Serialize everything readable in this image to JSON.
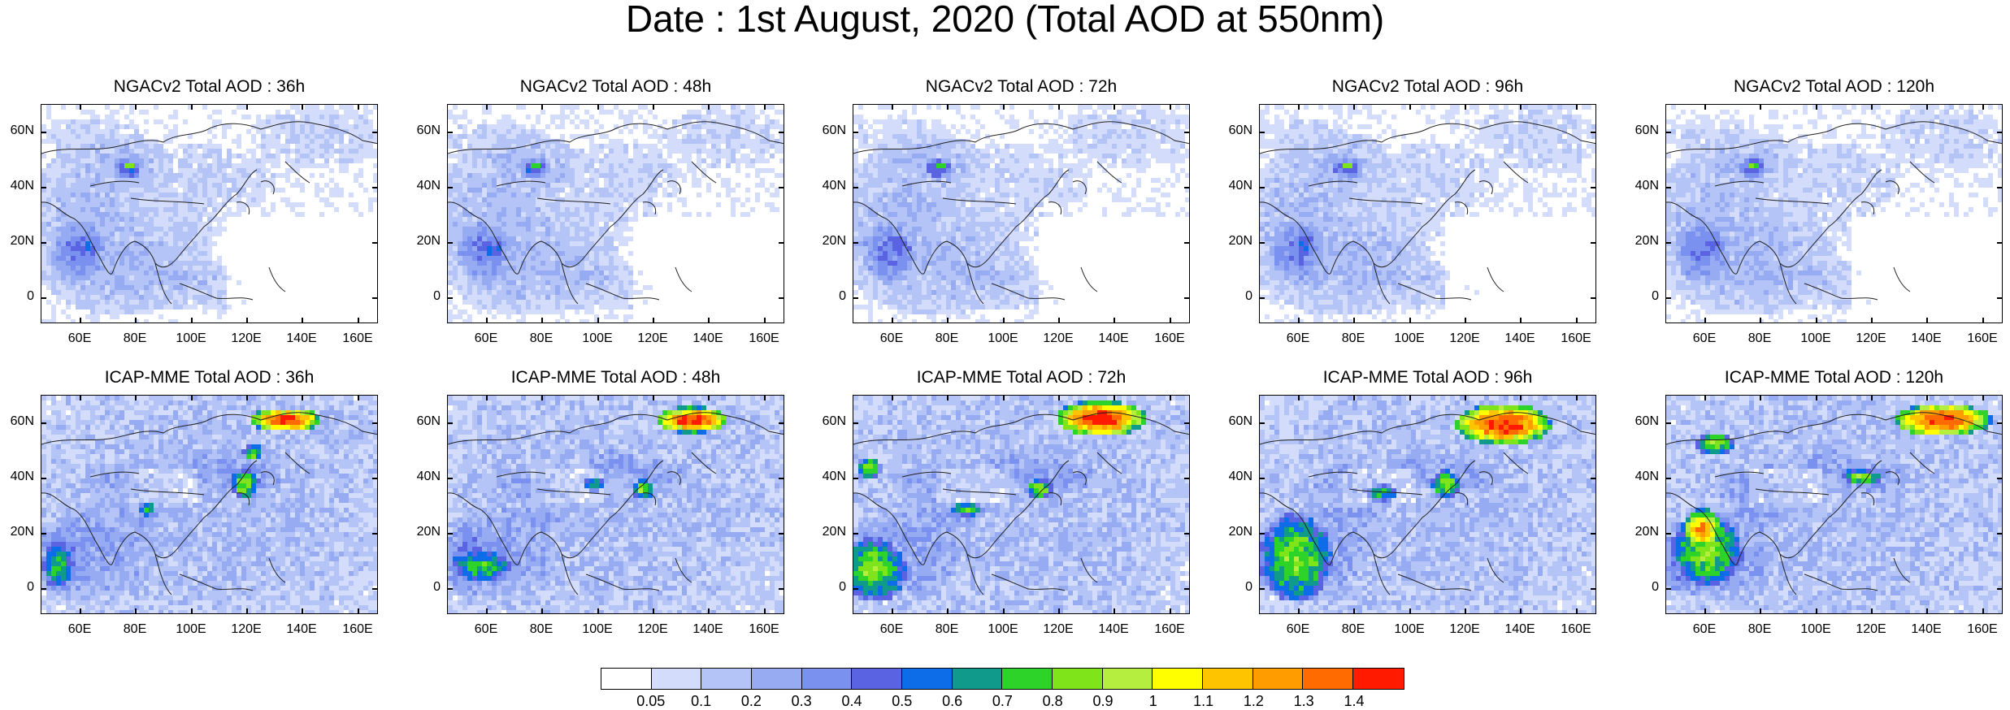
{
  "title": "Date : 1st August, 2020 (Total AOD at 550nm)",
  "lat_ticks": [
    "60N",
    "40N",
    "20N",
    "0"
  ],
  "lon_ticks": [
    "60E",
    "80E",
    "100E",
    "120E",
    "140E",
    "160E"
  ],
  "panels": [
    {
      "row": "NGACv2",
      "title": "NGACv2 Total AOD : 36h",
      "forecast_hour": 36
    },
    {
      "row": "NGACv2",
      "title": "NGACv2 Total AOD : 48h",
      "forecast_hour": 48
    },
    {
      "row": "NGACv2",
      "title": "NGACv2 Total AOD : 72h",
      "forecast_hour": 72
    },
    {
      "row": "NGACv2",
      "title": "NGACv2 Total AOD : 96h",
      "forecast_hour": 96
    },
    {
      "row": "NGACv2",
      "title": "NGACv2 Total AOD : 120h",
      "forecast_hour": 120
    },
    {
      "row": "ICAP-MME",
      "title": "ICAP-MME Total AOD : 36h",
      "forecast_hour": 36
    },
    {
      "row": "ICAP-MME",
      "title": "ICAP-MME Total AOD : 48h",
      "forecast_hour": 48
    },
    {
      "row": "ICAP-MME",
      "title": "ICAP-MME Total AOD : 72h",
      "forecast_hour": 72
    },
    {
      "row": "ICAP-MME",
      "title": "ICAP-MME Total AOD : 96h",
      "forecast_hour": 96
    },
    {
      "row": "ICAP-MME",
      "title": "ICAP-MME Total AOD : 120h",
      "forecast_hour": 120
    }
  ],
  "colorbar": {
    "labels": [
      "0.05",
      "0.1",
      "0.2",
      "0.3",
      "0.4",
      "0.5",
      "0.6",
      "0.7",
      "0.8",
      "0.9",
      "1",
      "1.1",
      "1.2",
      "1.3",
      "1.4"
    ],
    "colors": [
      "#ffffff",
      "#d4dcfb",
      "#b4c4f7",
      "#97abf3",
      "#7a91ef",
      "#5a63e2",
      "#0d6ce8",
      "#0f9a8c",
      "#2ed32a",
      "#7fe41a",
      "#b6ee3f",
      "#ffff00",
      "#ffc400",
      "#ff9d00",
      "#ff6b00",
      "#ff1a00"
    ]
  }
}
